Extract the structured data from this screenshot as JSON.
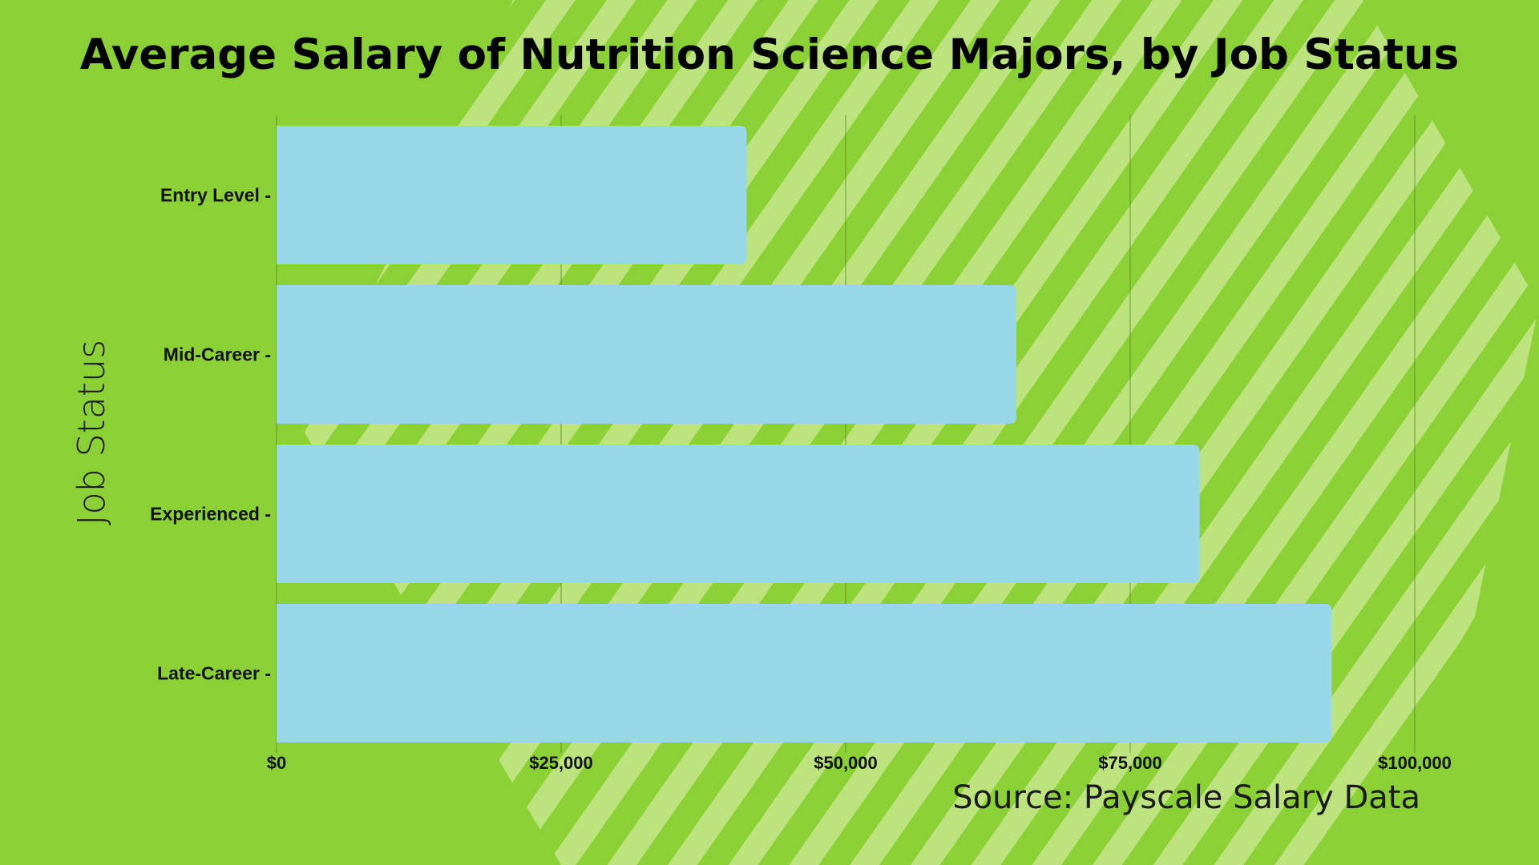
{
  "chart_data": {
    "type": "bar",
    "orientation": "horizontal",
    "title": "Average Salary of Nutrition Science Majors, by Job Status",
    "ylabel": "Job Status",
    "categories": [
      "Entry Level",
      "Mid-Career",
      "Experienced",
      "Late-Career"
    ],
    "category_tick_labels": [
      "Entry Level -",
      "Mid-Career -",
      "Experienced -",
      "Late-Career -"
    ],
    "values": [
      41300,
      65000,
      81100,
      92700
    ],
    "xlim": [
      0,
      100000
    ],
    "xticks": [
      0,
      25000,
      50000,
      75000,
      100000
    ],
    "xtick_labels": [
      "$0",
      "$25,000",
      "$50,000",
      "$75,000",
      "$100,000"
    ],
    "grid": true,
    "annotation": "Source: Payscale Salary Data"
  },
  "colors": {
    "background": "#8bd136",
    "stripe": "#bde37f",
    "bar": "#98d7e8",
    "grid": "#5a8a2a"
  }
}
